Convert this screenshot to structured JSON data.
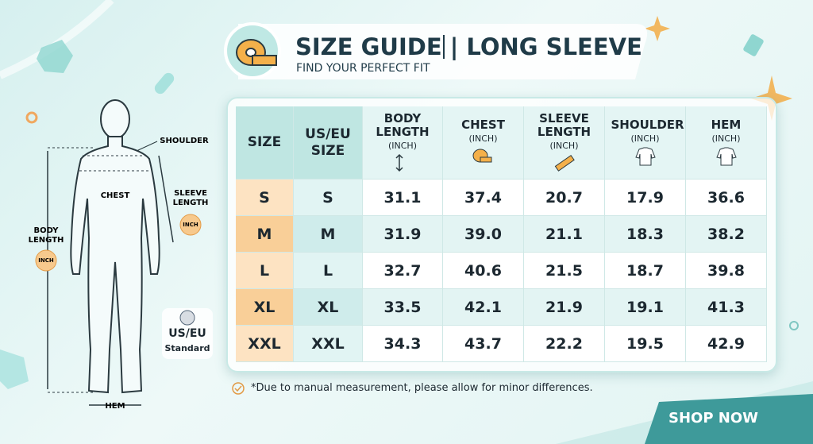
{
  "header": {
    "title": "SIZE GUIDE | LONG SLEEVE",
    "subtitle": "FIND YOUR PERFECT FIT"
  },
  "figure": {
    "shoulder": "SHOULDER",
    "chest": "CHEST",
    "sleeve_length": "SLEEVE LENGTH",
    "sleeve_unit": "INCH",
    "body_length": "BODY LENGTH",
    "body_unit": "INCH",
    "hem": "HEM"
  },
  "badge": {
    "line1": "US/EU",
    "line2": "Standard"
  },
  "table": {
    "columns": [
      {
        "label": "SIZE"
      },
      {
        "label": "US/EU SIZE"
      },
      {
        "label": "BODY LENGTH",
        "unit": "(INCH)"
      },
      {
        "label": "CHEST",
        "unit": "(INCH)"
      },
      {
        "label": "SLEEVE LENGTH",
        "unit": "(INCH)"
      },
      {
        "label": "SHOULDER",
        "unit": "(INCH)"
      },
      {
        "label": "HEM",
        "unit": "(INCH)"
      }
    ],
    "rows": [
      [
        "S",
        "S",
        "31.1",
        "37.4",
        "20.7",
        "17.9",
        "36.6"
      ],
      [
        "M",
        "M",
        "31.9",
        "39.0",
        "21.1",
        "18.3",
        "38.2"
      ],
      [
        "L",
        "L",
        "32.7",
        "40.6",
        "21.5",
        "18.7",
        "39.8"
      ],
      [
        "XL",
        "XL",
        "33.5",
        "42.1",
        "21.9",
        "19.1",
        "41.3"
      ],
      [
        "XXL",
        "XXL",
        "34.3",
        "43.7",
        "22.2",
        "19.5",
        "42.9"
      ]
    ]
  },
  "note": "*Due to manual measurement, please allow for minor differences.",
  "button": "SHOP NOW"
}
